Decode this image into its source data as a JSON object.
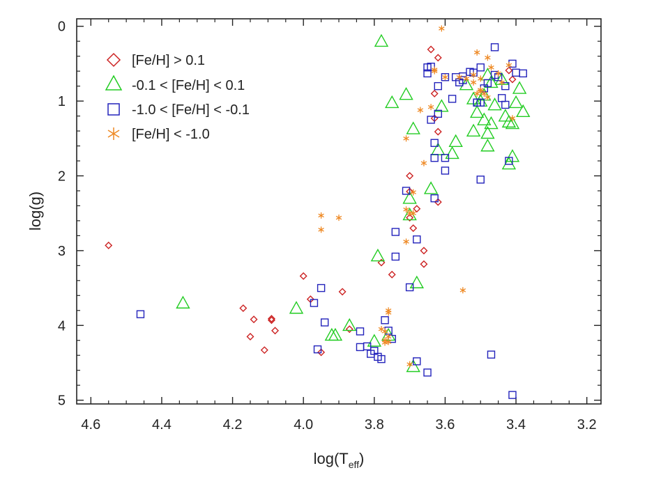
{
  "chart_data": {
    "type": "scatter",
    "title": "",
    "xlabel": "log(T",
    "xlabel_sub": "eff",
    "xlabel_close": ")",
    "ylabel": "log(g)",
    "xlim": [
      4.64,
      3.16
    ],
    "ylim": [
      -0.1,
      5.05
    ],
    "y_inverted": true,
    "x_inverted": true,
    "xticks": [
      4.6,
      4.4,
      4.2,
      4.0,
      3.8,
      3.6,
      3.4,
      3.2
    ],
    "xtick_labels": [
      "4.6",
      "4.4",
      "4.2",
      "4.0",
      "3.8",
      "3.6",
      "3.4",
      "3.2"
    ],
    "yticks": [
      0,
      1,
      2,
      3,
      4,
      5
    ],
    "ytick_labels": [
      "0",
      "1",
      "2",
      "3",
      "4",
      "5"
    ],
    "grid": false,
    "legend_position": "top-left",
    "series": [
      {
        "name": "[Fe/H] > 0.1",
        "marker": "diamond",
        "color": "#cc2222",
        "x": [
          4.55,
          4.17,
          4.14,
          4.15,
          4.11,
          4.09,
          4.09,
          4.08,
          4.0,
          3.98,
          3.95,
          3.89,
          3.87,
          3.78,
          3.75,
          3.69,
          3.68,
          3.7,
          3.7,
          3.7,
          3.66,
          3.66,
          3.62,
          3.62,
          3.63,
          3.62,
          3.64,
          3.63,
          3.41,
          3.42
        ],
        "y": [
          2.93,
          3.77,
          3.92,
          4.15,
          4.33,
          3.93,
          3.91,
          4.07,
          3.34,
          3.65,
          4.36,
          3.55,
          4.05,
          3.16,
          3.32,
          2.7,
          2.44,
          2.21,
          2.0,
          2.56,
          3.0,
          3.18,
          2.35,
          1.41,
          1.23,
          0.42,
          0.31,
          0.9,
          0.71,
          0.59
        ]
      },
      {
        "name": "-0.1 < [Fe/H] < 0.1",
        "marker": "triangle",
        "color": "#22cc22",
        "x": [
          4.34,
          4.02,
          3.92,
          3.91,
          3.87,
          3.79,
          3.8,
          3.76,
          3.69,
          3.68,
          3.7,
          3.7,
          3.69,
          3.64,
          3.71,
          3.75,
          3.78,
          3.61,
          3.62,
          3.57,
          3.58,
          3.54,
          3.52,
          3.51,
          3.5,
          3.49,
          3.48,
          3.47,
          3.48,
          3.49,
          3.47,
          3.46,
          3.42,
          3.41,
          3.39,
          3.38,
          3.4,
          3.43,
          3.42,
          3.44,
          3.41,
          3.52,
          3.48
        ],
        "y": [
          3.7,
          3.77,
          4.13,
          4.13,
          4.0,
          3.07,
          4.21,
          4.13,
          4.55,
          3.43,
          2.3,
          2.52,
          1.37,
          2.17,
          0.91,
          1.02,
          0.2,
          1.07,
          1.65,
          1.54,
          1.7,
          0.78,
          1.4,
          1.15,
          1.0,
          1.25,
          1.43,
          1.3,
          1.6,
          0.92,
          0.75,
          1.05,
          1.84,
          1.74,
          0.83,
          1.14,
          1.02,
          1.2,
          1.28,
          0.71,
          1.3,
          0.97,
          0.65
        ]
      },
      {
        "name": "-1.0 < [Fe/H] < -0.1",
        "marker": "square",
        "color": "#2222bb",
        "x": [
          4.46,
          3.97,
          3.96,
          3.95,
          3.94,
          3.84,
          3.84,
          3.82,
          3.81,
          3.8,
          3.79,
          3.78,
          3.77,
          3.76,
          3.75,
          3.74,
          3.7,
          3.71,
          3.74,
          3.68,
          3.68,
          3.65,
          3.63,
          3.64,
          3.63,
          3.63,
          3.62,
          3.6,
          3.6,
          3.58,
          3.62,
          3.6,
          3.64,
          3.65,
          3.65,
          3.56,
          3.55,
          3.57,
          3.55,
          3.53,
          3.52,
          3.5,
          3.49,
          3.48,
          3.46,
          3.45,
          3.44,
          3.43,
          3.41,
          3.43,
          3.46,
          3.42,
          3.41,
          3.4,
          3.38,
          3.5,
          3.47,
          3.51,
          3.51,
          3.5
        ],
        "y": [
          3.85,
          3.7,
          4.32,
          3.5,
          3.96,
          4.08,
          4.29,
          4.28,
          4.38,
          4.34,
          4.42,
          4.45,
          3.93,
          4.07,
          4.18,
          3.08,
          3.49,
          2.2,
          2.75,
          2.85,
          4.48,
          4.63,
          2.3,
          1.25,
          1.56,
          1.76,
          1.17,
          1.93,
          1.76,
          0.97,
          0.8,
          0.68,
          0.54,
          0.63,
          0.55,
          0.75,
          0.72,
          0.68,
          0.67,
          0.61,
          0.62,
          0.55,
          0.83,
          0.76,
          0.65,
          0.68,
          0.96,
          1.05,
          0.5,
          0.8,
          0.28,
          1.8,
          4.93,
          0.62,
          0.63,
          2.05,
          4.39,
          1.02,
          1.02,
          1.02
        ]
      },
      {
        "name": "[Fe/H] < -1.0",
        "marker": "asterisk",
        "color": "#ee8822",
        "x": [
          3.95,
          3.95,
          3.9,
          3.78,
          3.77,
          3.76,
          3.77,
          3.76,
          3.77,
          3.76,
          3.76,
          3.7,
          3.71,
          3.7,
          3.71,
          3.69,
          3.69,
          3.71,
          3.66,
          3.67,
          3.64,
          3.63,
          3.61,
          3.6,
          3.56,
          3.55,
          3.54,
          3.52,
          3.51,
          3.5,
          3.49,
          3.48,
          3.47,
          3.48,
          3.45,
          3.44,
          3.42,
          3.41,
          3.5,
          3.51,
          3.52,
          3.5,
          3.63
        ],
        "y": [
          2.53,
          2.72,
          2.56,
          4.05,
          4.08,
          4.15,
          4.2,
          4.22,
          4.23,
          3.8,
          3.83,
          4.52,
          2.88,
          2.5,
          2.45,
          2.5,
          2.22,
          1.5,
          1.83,
          1.12,
          1.08,
          0.58,
          0.03,
          0.68,
          0.68,
          3.53,
          0.7,
          0.65,
          0.9,
          0.85,
          0.9,
          0.42,
          0.55,
          0.95,
          0.63,
          0.75,
          0.52,
          1.23,
          0.87,
          0.35,
          0.75,
          0.7,
          0.6
        ]
      }
    ]
  }
}
